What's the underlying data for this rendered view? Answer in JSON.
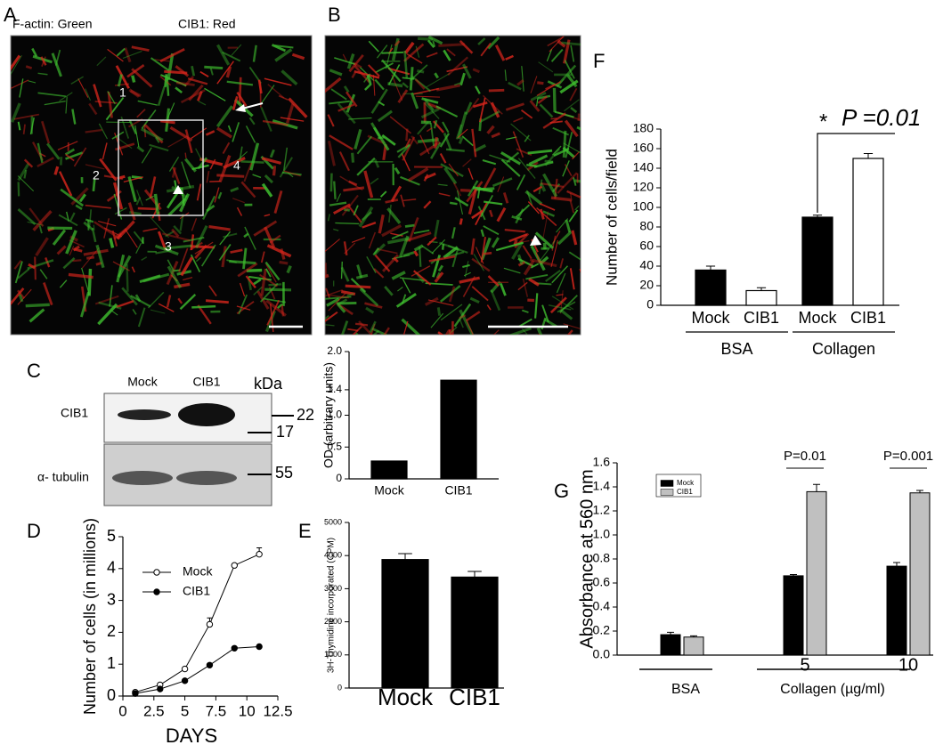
{
  "panel_labels": [
    "A",
    "B",
    "C",
    "D",
    "E",
    "F",
    "G"
  ],
  "micrograph_a": {
    "labels": [
      "F-actin: Green",
      "CIB1: Red"
    ],
    "regions": [
      "1",
      "2",
      "3",
      "4"
    ]
  },
  "blot": {
    "lanes": [
      "Mock",
      "CIB1"
    ],
    "unit": "kDa",
    "rows": [
      "CIB1",
      "α- tubulin"
    ],
    "markers": [
      "22",
      "17",
      "55"
    ]
  },
  "chart_data": [
    {
      "type": "bar",
      "ylabel": "Number of cells/field",
      "categories": [
        "Mock",
        "CIB1",
        "Mock",
        "CIB1"
      ],
      "values": [
        36,
        15,
        90,
        150
      ],
      "errors": [
        4,
        3,
        2,
        5
      ],
      "colors": [
        "#000000",
        "#ffffff",
        "#000000",
        "#ffffff"
      ],
      "groups": [
        "BSA",
        "Collagen"
      ],
      "annotation_mark": "*",
      "annotation": "P =0.01",
      "ylim": [
        0,
        180
      ],
      "yticks": [
        0,
        20,
        40,
        60,
        80,
        100,
        120,
        140,
        160,
        180
      ]
    },
    {
      "type": "bar",
      "ylabel": "OD (arbitrary units)",
      "categories": [
        "Mock",
        "CIB1"
      ],
      "values": [
        0.28,
        1.55
      ],
      "colors": [
        "#000000",
        "#000000"
      ],
      "ylim": [
        0,
        2
      ],
      "yticks": [
        0,
        0.5,
        {
          "value": 1,
          "label": "1.0"
        },
        1.4,
        {
          "value": 2,
          "label": "2.0"
        }
      ]
    },
    {
      "type": "line",
      "xlabel": "DAYS",
      "ylabel": "Number of cells (in millions)",
      "x": [
        1,
        3,
        5,
        7,
        9,
        11
      ],
      "series": [
        {
          "name": "Mock",
          "color": "#000000",
          "marker": "open",
          "values": [
            0.12,
            0.35,
            0.85,
            2.25,
            4.1,
            4.45
          ],
          "errors": [
            0.03,
            0.05,
            0.05,
            0.2,
            0.05,
            0.2
          ]
        },
        {
          "name": "CIB1",
          "color": "#000000",
          "marker": "filled",
          "values": [
            0.08,
            0.22,
            0.48,
            0.97,
            1.5,
            1.55
          ],
          "errors": [
            0.02,
            0.03,
            0.04,
            0.05,
            0.05,
            0.04
          ]
        }
      ],
      "xlim": [
        0,
        12.5
      ],
      "xticks": [
        0,
        2.5,
        5,
        7.5,
        10,
        12.5
      ],
      "ylim": [
        0,
        5
      ],
      "yticks": [
        0,
        1,
        2,
        3,
        4,
        5
      ]
    },
    {
      "type": "bar",
      "ylabel": "3H-Thymidine incorporated (CPM)",
      "categories": [
        "Mock",
        "CIB1"
      ],
      "values": [
        3880,
        3350
      ],
      "errors": [
        180,
        170
      ],
      "colors": [
        "#000000",
        "#000000"
      ],
      "ylim": [
        0,
        5000
      ],
      "yticks": [
        0,
        1000,
        2000,
        3000,
        4000,
        5000
      ]
    },
    {
      "type": "grouped_bar",
      "ylabel": "Absorbance at 560 nm",
      "xlabel": "Collagen (µg/ml)",
      "categories": [
        "BSA",
        "5",
        "10"
      ],
      "series": [
        {
          "name": "Mock",
          "color": "#000000",
          "values": [
            0.17,
            0.66,
            0.74
          ],
          "errors": [
            0.02,
            0.01,
            0.03
          ]
        },
        {
          "name": "CIB1",
          "color": "#c0c0c0",
          "values": [
            0.15,
            1.36,
            1.35
          ],
          "errors": [
            0.01,
            0.06,
            0.02
          ]
        }
      ],
      "annotations": [
        "P=0.01",
        "P=0.001"
      ],
      "ylim": [
        0,
        1.6
      ],
      "yticks": [
        {
          "value": 0,
          "label": "0.0"
        },
        0.2,
        0.4,
        0.6,
        0.8,
        {
          "value": 1,
          "label": "1.0"
        },
        1.2,
        1.4,
        1.6
      ]
    }
  ]
}
